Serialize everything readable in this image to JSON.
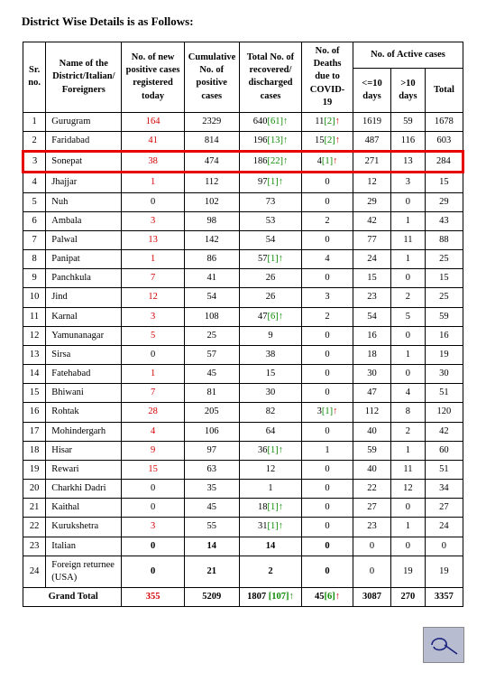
{
  "title": "District Wise Details is as Follows:",
  "columns": {
    "sr": "Sr. no.",
    "name": "Name of the District/Italian/ Foreigners",
    "new": "No. of new positive cases registered today",
    "cum": "Cumulative No. of positive cases",
    "rec": "Total No. of recovered/ discharged cases",
    "dth": "No. of Deaths due to COVID-19",
    "active_group": "No. of Active cases",
    "a1": "<=10 days",
    "a2": ">10 days",
    "a3": "Total"
  },
  "rows": [
    {
      "sr": "1",
      "name": "Gurugram",
      "new": "164",
      "cum": "2329",
      "rec_base": "640",
      "rec_delta": "[61]",
      "rec_up": true,
      "dth_base": "11",
      "dth_delta": "[2]",
      "dth_up": true,
      "a1": "1619",
      "a2": "59",
      "a3": "1678"
    },
    {
      "sr": "2",
      "name": "Faridabad",
      "new": "41",
      "cum": "814",
      "rec_base": "196",
      "rec_delta": "[13]",
      "rec_up": true,
      "dth_base": "15",
      "dth_delta": "[2]",
      "dth_up": true,
      "a1": "487",
      "a2": "116",
      "a3": "603"
    },
    {
      "sr": "3",
      "name": "Sonepat",
      "new": "38",
      "cum": "474",
      "rec_base": "186",
      "rec_delta": "[22]",
      "rec_up": true,
      "dth_base": "4",
      "dth_delta": "[1]",
      "dth_up": true,
      "a1": "271",
      "a2": "13",
      "a3": "284",
      "highlight": true
    },
    {
      "sr": "4",
      "name": "Jhajjar",
      "new": "1",
      "cum": "112",
      "rec_base": "97",
      "rec_delta": "[1]",
      "rec_up": true,
      "dth_base": "0",
      "a1": "12",
      "a2": "3",
      "a3": "15"
    },
    {
      "sr": "5",
      "name": "Nuh",
      "new": "0",
      "new_plain": true,
      "cum": "102",
      "rec_base": "73",
      "dth_base": "0",
      "a1": "29",
      "a2": "0",
      "a3": "29"
    },
    {
      "sr": "6",
      "name": "Ambala",
      "new": "3",
      "cum": "98",
      "rec_base": "53",
      "dth_base": "2",
      "a1": "42",
      "a2": "1",
      "a3": "43"
    },
    {
      "sr": "7",
      "name": "Palwal",
      "new": "13",
      "cum": "142",
      "rec_base": "54",
      "dth_base": "0",
      "a1": "77",
      "a2": "11",
      "a3": "88"
    },
    {
      "sr": "8",
      "name": "Panipat",
      "new": "1",
      "cum": "86",
      "rec_base": "57",
      "rec_delta": "[1]",
      "rec_up": true,
      "dth_base": "4",
      "a1": "24",
      "a2": "1",
      "a3": "25"
    },
    {
      "sr": "9",
      "name": "Panchkula",
      "new": "7",
      "cum": "41",
      "rec_base": "26",
      "dth_base": "0",
      "a1": "15",
      "a2": "0",
      "a3": "15"
    },
    {
      "sr": "10",
      "name": "Jind",
      "new": "12",
      "cum": "54",
      "rec_base": "26",
      "dth_base": "3",
      "a1": "23",
      "a2": "2",
      "a3": "25"
    },
    {
      "sr": "11",
      "name": "Karnal",
      "new": "3",
      "cum": "108",
      "rec_base": "47",
      "rec_delta": "[6]",
      "rec_up": true,
      "dth_base": "2",
      "a1": "54",
      "a2": "5",
      "a3": "59"
    },
    {
      "sr": "12",
      "name": "Yamunanagar",
      "new": "5",
      "cum": "25",
      "rec_base": "9",
      "dth_base": "0",
      "a1": "16",
      "a2": "0",
      "a3": "16"
    },
    {
      "sr": "13",
      "name": "Sirsa",
      "new": "0",
      "new_plain": true,
      "cum": "57",
      "rec_base": "38",
      "dth_base": "0",
      "a1": "18",
      "a2": "1",
      "a3": "19"
    },
    {
      "sr": "14",
      "name": "Fatehabad",
      "new": "1",
      "cum": "45",
      "rec_base": "15",
      "dth_base": "0",
      "a1": "30",
      "a2": "0",
      "a3": "30"
    },
    {
      "sr": "15",
      "name": "Bhiwani",
      "new": "7",
      "cum": "81",
      "rec_base": "30",
      "dth_base": "0",
      "a1": "47",
      "a2": "4",
      "a3": "51"
    },
    {
      "sr": "16",
      "name": "Rohtak",
      "new": "28",
      "cum": "205",
      "rec_base": "82",
      "dth_base": "3",
      "dth_delta": "[1]",
      "dth_up": true,
      "a1": "112",
      "a2": "8",
      "a3": "120"
    },
    {
      "sr": "17",
      "name": "Mohindergarh",
      "new": "4",
      "cum": "106",
      "rec_base": "64",
      "dth_base": "0",
      "a1": "40",
      "a2": "2",
      "a3": "42"
    },
    {
      "sr": "18",
      "name": "Hisar",
      "new": "9",
      "cum": "97",
      "rec_base": "36",
      "rec_delta": "[1]",
      "rec_up": true,
      "dth_base": "1",
      "a1": "59",
      "a2": "1",
      "a3": "60"
    },
    {
      "sr": "19",
      "name": "Rewari",
      "new": "15",
      "cum": "63",
      "rec_base": "12",
      "dth_base": "0",
      "a1": "40",
      "a2": "11",
      "a3": "51"
    },
    {
      "sr": "20",
      "name": "Charkhi Dadri",
      "new": "0",
      "new_plain": true,
      "cum": "35",
      "rec_base": "1",
      "dth_base": "0",
      "a1": "22",
      "a2": "12",
      "a3": "34"
    },
    {
      "sr": "21",
      "name": "Kaithal",
      "new": "0",
      "new_plain": true,
      "cum": "45",
      "rec_base": "18",
      "rec_delta": "[1]",
      "rec_up": true,
      "dth_base": "0",
      "a1": "27",
      "a2": "0",
      "a3": "27"
    },
    {
      "sr": "22",
      "name": "Kurukshetra",
      "new": "3",
      "cum": "55",
      "rec_base": "31",
      "rec_delta": "[1]",
      "rec_up": true,
      "dth_base": "0",
      "a1": "23",
      "a2": "1",
      "a3": "24"
    },
    {
      "sr": "23",
      "name": "Italian",
      "new": "0",
      "new_bold": true,
      "cum": "14",
      "cum_bold": true,
      "rec_base": "14",
      "rec_bold": true,
      "dth_base": "0",
      "dth_bold": true,
      "a1": "0",
      "a2": "0",
      "a3": "0"
    },
    {
      "sr": "24",
      "name": "Foreign returnee (USA)",
      "new": "0",
      "new_bold": true,
      "cum": "21",
      "cum_bold": true,
      "rec_base": "2",
      "rec_bold": true,
      "dth_base": "0",
      "dth_bold": true,
      "a1": "0",
      "a2": "19",
      "a3": "19"
    }
  ],
  "total": {
    "label": "Grand Total",
    "new": "355",
    "cum": "5209",
    "rec_base": "1807 ",
    "rec_delta": "[107]",
    "dth_base": "45",
    "dth_delta": "[6]",
    "a1": "3087",
    "a2": "270",
    "a3": "3357"
  }
}
